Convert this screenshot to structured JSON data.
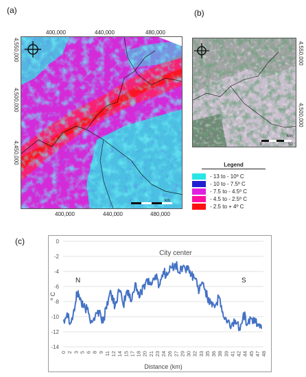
{
  "panel_a": {
    "label": "(a)",
    "x_ticks": [
      "400,000",
      "440,000",
      "480,000"
    ],
    "y_ticks": [
      "4,550,000",
      "4,500,000",
      "4,450,000"
    ],
    "scale_label": "km"
  },
  "panel_b": {
    "label": "(b)",
    "y_ticks": [
      "4,550,000",
      "4,500,000"
    ],
    "scale_label": "km",
    "scale_ticks": [
      "0",
      "50"
    ]
  },
  "legend": {
    "title": "Legend",
    "items": [
      {
        "label": "- 13 to - 10º C",
        "color": "#29e6e6"
      },
      {
        "label": "- 10 to - 7.5º C",
        "color": "#2020d0"
      },
      {
        "label": "- 7.5 to - 4.5º C",
        "color": "#e020e0"
      },
      {
        "label": "- 4.5 to - 2.5º C",
        "color": "#ff10a0"
      },
      {
        "label": "- 2.5 to + 4º C",
        "color": "#ff1010"
      }
    ]
  },
  "panel_c": {
    "label": "(c)",
    "annotation_center": "City center",
    "annotation_n": "N",
    "annotation_s": "S"
  },
  "chart_data": {
    "type": "line",
    "xlabel": "Distance (km)",
    "ylabel": "º C",
    "xlim": [
      0,
      50
    ],
    "ylim": [
      -14,
      0
    ],
    "x_ticks": [
      0,
      2,
      3,
      5,
      6,
      8,
      9,
      11,
      12,
      14,
      15,
      17,
      18,
      20,
      21,
      23,
      24,
      26,
      27,
      29,
      30,
      32,
      33,
      35,
      36,
      38,
      39,
      41,
      42,
      44,
      45,
      47,
      48
    ],
    "y_ticks": [
      0,
      -2,
      -4,
      -6,
      -8,
      -10,
      -12,
      -14
    ],
    "line_color": "#4472c4",
    "series": [
      {
        "x": [
          0,
          1,
          2,
          3,
          3.5,
          4,
          5,
          6,
          7,
          8,
          9,
          10,
          11,
          12,
          13,
          14,
          15,
          16,
          17,
          18,
          19,
          20,
          21,
          22,
          23,
          24,
          25,
          26,
          27,
          28,
          29,
          30,
          31,
          32,
          33,
          34,
          35,
          36,
          37,
          38,
          39,
          40,
          41,
          42,
          43,
          44,
          45,
          46,
          47,
          48,
          49,
          49.5
        ],
        "values": [
          -10.5,
          -9.5,
          -10.8,
          -8.5,
          -6.8,
          -7.2,
          -8.8,
          -9.0,
          -10.5,
          -10.0,
          -9.2,
          -10.8,
          -8.0,
          -7.0,
          -8.5,
          -6.5,
          -8.5,
          -6.5,
          -8.0,
          -5.5,
          -7.5,
          -6.0,
          -5.0,
          -5.8,
          -4.5,
          -5.8,
          -4.0,
          -4.5,
          -3.5,
          -3.0,
          -4.2,
          -3.2,
          -3.8,
          -4.5,
          -5.0,
          -6.5,
          -5.5,
          -7.5,
          -8.0,
          -8.5,
          -7.5,
          -10.0,
          -10.8,
          -11.2,
          -10.5,
          -11.5,
          -9.5,
          -11.0,
          -10.2,
          -10.8,
          -11.0,
          -11.6
        ]
      }
    ]
  }
}
